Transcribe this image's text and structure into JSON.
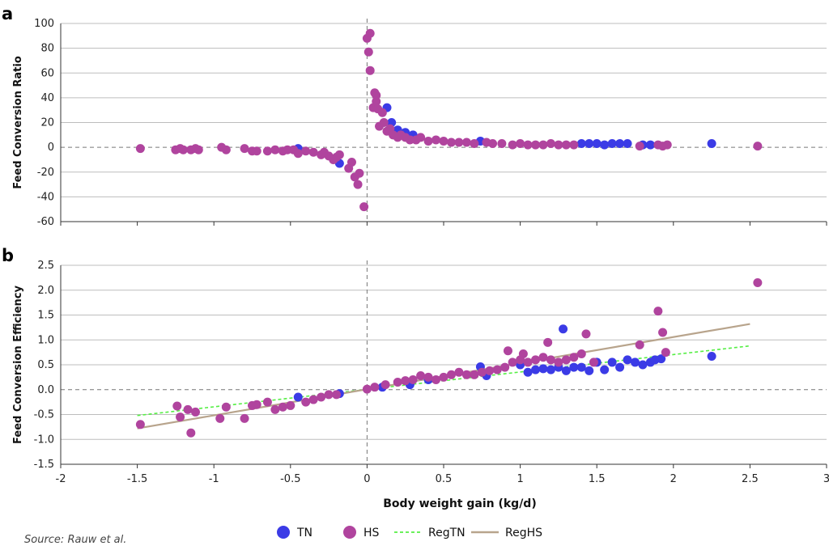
{
  "source": "Source: Rauw et al.",
  "colors": {
    "TN": "#3b3be6",
    "HS": "#b0449e",
    "RegTN": "#55ee44",
    "RegHS": "#b8a48c"
  },
  "chart_data": [
    {
      "panel_label": "a",
      "type": "scatter",
      "title": "",
      "xlabel": "",
      "ylabel": "Feed Conversion Ratio",
      "xlim": [
        -2,
        3
      ],
      "ylim": [
        -60,
        100
      ],
      "yticks": [
        "100",
        "80",
        "60",
        "40",
        "20",
        "0",
        "-20",
        "-40",
        "-60"
      ],
      "series": [
        {
          "name": "TN",
          "points": [
            [
              -0.45,
              -1
            ],
            [
              -0.18,
              -13
            ],
            [
              0.13,
              32
            ],
            [
              0.16,
              20
            ],
            [
              0.2,
              14
            ],
            [
              0.25,
              12
            ],
            [
              0.3,
              10
            ],
            [
              0.74,
              5
            ],
            [
              1.4,
              3
            ],
            [
              1.45,
              3
            ],
            [
              1.5,
              3
            ],
            [
              1.55,
              2
            ],
            [
              1.6,
              3
            ],
            [
              1.65,
              3
            ],
            [
              1.7,
              3
            ],
            [
              1.8,
              2
            ],
            [
              1.85,
              2
            ],
            [
              2.25,
              3
            ]
          ]
        },
        {
          "name": "HS",
          "points": [
            [
              -1.48,
              -1
            ],
            [
              -1.25,
              -2
            ],
            [
              -1.22,
              -1
            ],
            [
              -1.2,
              -2
            ],
            [
              -1.15,
              -2
            ],
            [
              -1.12,
              -1
            ],
            [
              -1.1,
              -2
            ],
            [
              -0.95,
              0
            ],
            [
              -0.92,
              -2
            ],
            [
              -0.8,
              -1
            ],
            [
              -0.75,
              -3
            ],
            [
              -0.72,
              -3
            ],
            [
              -0.65,
              -3
            ],
            [
              -0.6,
              -2
            ],
            [
              -0.55,
              -3
            ],
            [
              -0.52,
              -2
            ],
            [
              -0.48,
              -2
            ],
            [
              -0.45,
              -5
            ],
            [
              -0.4,
              -3
            ],
            [
              -0.35,
              -4
            ],
            [
              -0.3,
              -6
            ],
            [
              -0.28,
              -4
            ],
            [
              -0.25,
              -7
            ],
            [
              -0.22,
              -10
            ],
            [
              -0.2,
              -8
            ],
            [
              -0.18,
              -6
            ],
            [
              -0.12,
              -17
            ],
            [
              -0.1,
              -12
            ],
            [
              -0.08,
              -24
            ],
            [
              -0.06,
              -30
            ],
            [
              -0.05,
              -21
            ],
            [
              -0.02,
              -48
            ],
            [
              0.0,
              88
            ],
            [
              0.01,
              77
            ],
            [
              0.02,
              92
            ],
            [
              0.02,
              62
            ],
            [
              0.04,
              32
            ],
            [
              0.05,
              44
            ],
            [
              0.06,
              42
            ],
            [
              0.06,
              37
            ],
            [
              0.07,
              31
            ],
            [
              0.08,
              17
            ],
            [
              0.1,
              28
            ],
            [
              0.11,
              20
            ],
            [
              0.13,
              13
            ],
            [
              0.15,
              15
            ],
            [
              0.17,
              10
            ],
            [
              0.2,
              8
            ],
            [
              0.22,
              10
            ],
            [
              0.25,
              8
            ],
            [
              0.28,
              6
            ],
            [
              0.32,
              6
            ],
            [
              0.35,
              8
            ],
            [
              0.4,
              5
            ],
            [
              0.45,
              6
            ],
            [
              0.5,
              5
            ],
            [
              0.55,
              4
            ],
            [
              0.6,
              4
            ],
            [
              0.65,
              4
            ],
            [
              0.7,
              3
            ],
            [
              0.78,
              4
            ],
            [
              0.82,
              3
            ],
            [
              0.88,
              3
            ],
            [
              0.95,
              2
            ],
            [
              1.0,
              3
            ],
            [
              1.05,
              2
            ],
            [
              1.1,
              2
            ],
            [
              1.15,
              2
            ],
            [
              1.2,
              3
            ],
            [
              1.25,
              2
            ],
            [
              1.3,
              2
            ],
            [
              1.35,
              2
            ],
            [
              1.78,
              1
            ],
            [
              1.9,
              2
            ],
            [
              1.93,
              1
            ],
            [
              1.96,
              2
            ],
            [
              2.55,
              1
            ]
          ]
        }
      ]
    },
    {
      "panel_label": "b",
      "type": "scatter",
      "title": "",
      "xlabel": "Body weight gain (kg/d)",
      "ylabel": "Feed Conversion Efficiency",
      "xlim": [
        -2,
        3
      ],
      "ylim": [
        -1.5,
        2.5
      ],
      "xticks": [
        "-2",
        "-1.5",
        "-1",
        "-0.5",
        "0",
        "0.5",
        "1",
        "1.5",
        "2",
        "2.5",
        "3"
      ],
      "yticks": [
        "2.5",
        "2.0",
        "1.5",
        "1.0",
        "0.5",
        "0.0",
        "-0.5",
        "-1.0",
        "-1.5"
      ],
      "series": [
        {
          "name": "TN",
          "points": [
            [
              -0.45,
              -0.15
            ],
            [
              -0.18,
              -0.08
            ],
            [
              0.1,
              0.05
            ],
            [
              0.28,
              0.1
            ],
            [
              0.4,
              0.2
            ],
            [
              0.74,
              0.46
            ],
            [
              0.78,
              0.28
            ],
            [
              1.0,
              0.5
            ],
            [
              1.05,
              0.35
            ],
            [
              1.1,
              0.4
            ],
            [
              1.15,
              0.42
            ],
            [
              1.2,
              0.4
            ],
            [
              1.25,
              0.45
            ],
            [
              1.28,
              1.22
            ],
            [
              1.3,
              0.38
            ],
            [
              1.35,
              0.45
            ],
            [
              1.4,
              0.45
            ],
            [
              1.45,
              0.38
            ],
            [
              1.5,
              0.55
            ],
            [
              1.55,
              0.4
            ],
            [
              1.6,
              0.55
            ],
            [
              1.65,
              0.45
            ],
            [
              1.7,
              0.6
            ],
            [
              1.75,
              0.55
            ],
            [
              1.8,
              0.5
            ],
            [
              1.85,
              0.55
            ],
            [
              1.88,
              0.6
            ],
            [
              1.92,
              0.62
            ],
            [
              2.25,
              0.67
            ]
          ]
        },
        {
          "name": "HS",
          "points": [
            [
              -1.48,
              -0.7
            ],
            [
              -1.24,
              -0.33
            ],
            [
              -1.22,
              -0.55
            ],
            [
              -1.17,
              -0.4
            ],
            [
              -1.15,
              -0.87
            ],
            [
              -1.12,
              -0.45
            ],
            [
              -0.96,
              -0.58
            ],
            [
              -0.92,
              -0.35
            ],
            [
              -0.8,
              -0.58
            ],
            [
              -0.75,
              -0.32
            ],
            [
              -0.72,
              -0.3
            ],
            [
              -0.65,
              -0.25
            ],
            [
              -0.6,
              -0.4
            ],
            [
              -0.55,
              -0.35
            ],
            [
              -0.5,
              -0.32
            ],
            [
              -0.4,
              -0.25
            ],
            [
              -0.35,
              -0.2
            ],
            [
              -0.3,
              -0.15
            ],
            [
              -0.25,
              -0.1
            ],
            [
              -0.2,
              -0.1
            ],
            [
              0.0,
              0.01
            ],
            [
              0.05,
              0.05
            ],
            [
              0.12,
              0.1
            ],
            [
              0.2,
              0.15
            ],
            [
              0.25,
              0.18
            ],
            [
              0.3,
              0.2
            ],
            [
              0.35,
              0.28
            ],
            [
              0.4,
              0.25
            ],
            [
              0.45,
              0.2
            ],
            [
              0.5,
              0.25
            ],
            [
              0.55,
              0.3
            ],
            [
              0.6,
              0.35
            ],
            [
              0.65,
              0.3
            ],
            [
              0.7,
              0.3
            ],
            [
              0.75,
              0.35
            ],
            [
              0.8,
              0.38
            ],
            [
              0.85,
              0.4
            ],
            [
              0.9,
              0.45
            ],
            [
              0.92,
              0.78
            ],
            [
              0.95,
              0.55
            ],
            [
              1.0,
              0.6
            ],
            [
              1.02,
              0.72
            ],
            [
              1.05,
              0.55
            ],
            [
              1.1,
              0.6
            ],
            [
              1.15,
              0.65
            ],
            [
              1.18,
              0.95
            ],
            [
              1.2,
              0.6
            ],
            [
              1.25,
              0.55
            ],
            [
              1.3,
              0.6
            ],
            [
              1.35,
              0.65
            ],
            [
              1.4,
              0.72
            ],
            [
              1.43,
              1.12
            ],
            [
              1.48,
              0.55
            ],
            [
              1.78,
              0.9
            ],
            [
              1.9,
              1.58
            ],
            [
              1.93,
              1.15
            ],
            [
              1.95,
              0.75
            ],
            [
              2.55,
              2.15
            ]
          ]
        },
        {
          "name": "RegTN",
          "kind": "line",
          "points": [
            [
              -1.5,
              -0.52
            ],
            [
              2.5,
              0.88
            ]
          ]
        },
        {
          "name": "RegHS",
          "kind": "line",
          "points": [
            [
              -1.5,
              -0.78
            ],
            [
              2.5,
              1.32
            ]
          ]
        }
      ],
      "legend": {
        "placement": "bottom",
        "entries": [
          "TN",
          "HS",
          "RegTN",
          "RegHS"
        ]
      }
    }
  ]
}
